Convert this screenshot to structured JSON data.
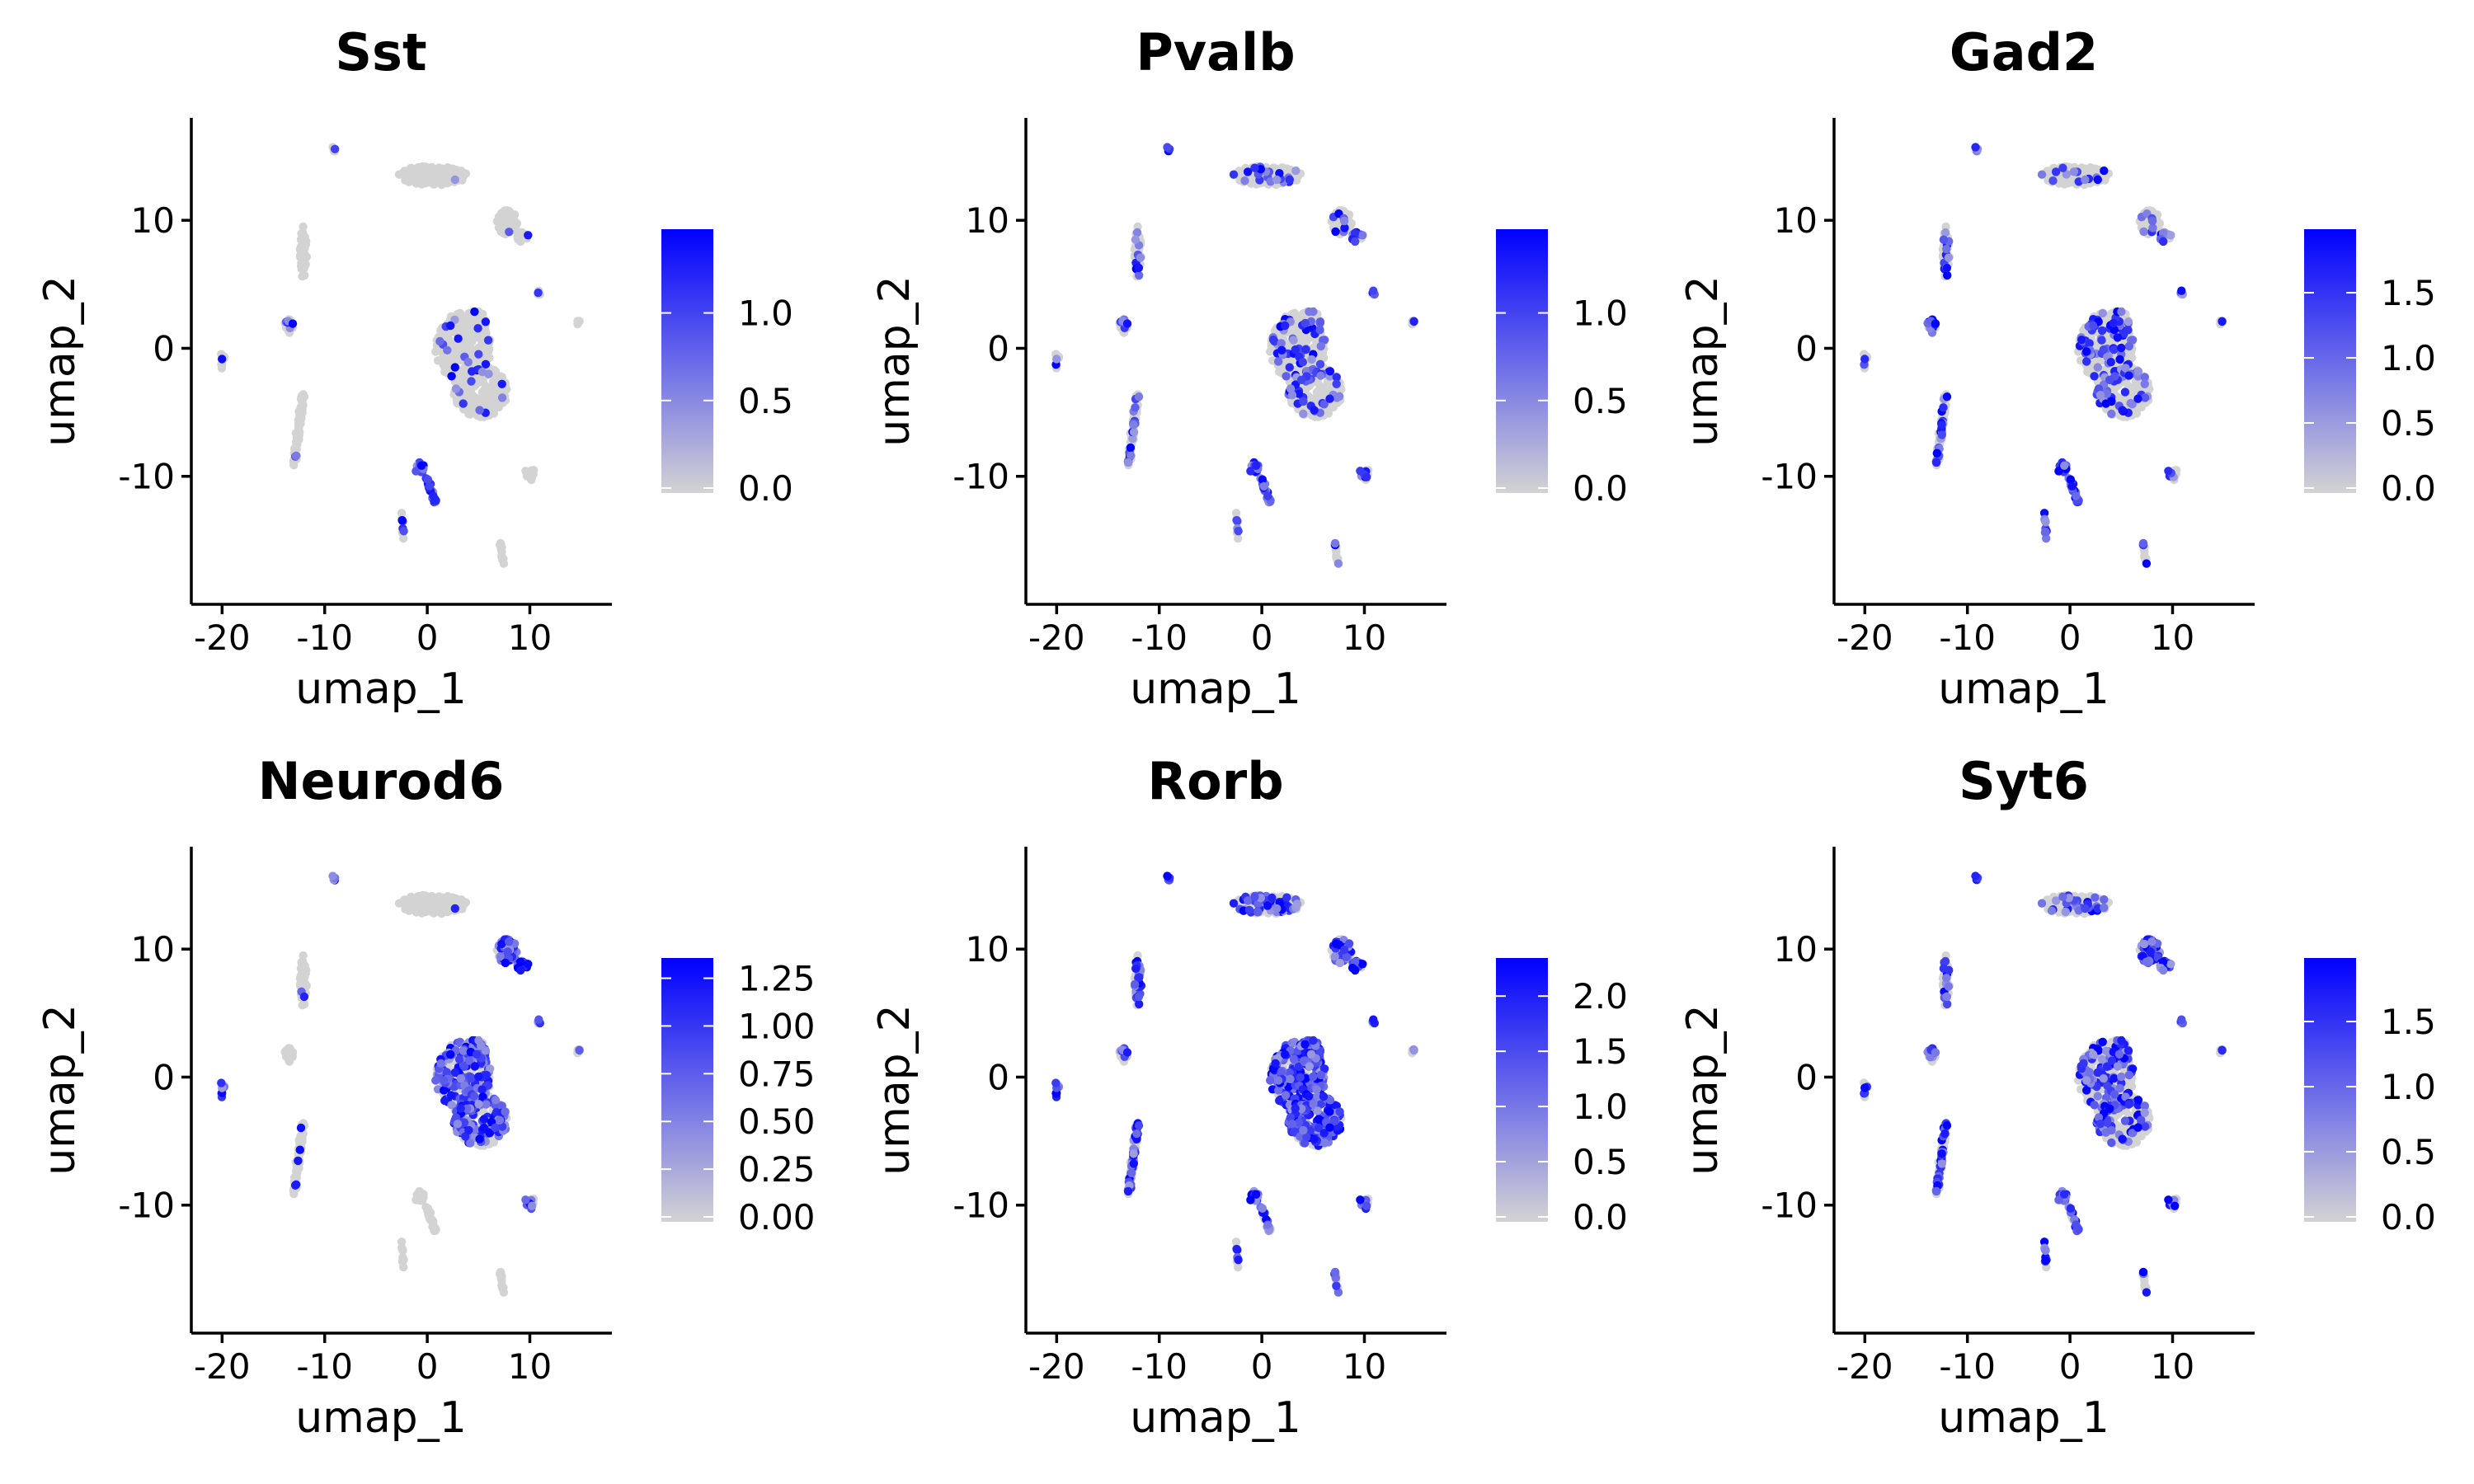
{
  "chart_data": [
    {
      "type": "scatter",
      "title": "Sst",
      "xlabel": "umap_1",
      "ylabel": "umap_2",
      "xlim": [
        -23,
        18
      ],
      "ylim": [
        -20,
        18
      ],
      "xticks": [
        -20,
        -10,
        0,
        10
      ],
      "yticks": [
        -10,
        0,
        10
      ],
      "xtick_labels": [
        "-20",
        "-10",
        "0",
        "10"
      ],
      "ytick_labels": [
        "-10",
        "0",
        "10"
      ],
      "color_low": "#d3d3d3",
      "color_high": "#0000ff",
      "legend": {
        "min": 0,
        "max": 1.45,
        "ticks": [
          0,
          0.5,
          1.0
        ],
        "tick_labels": [
          "0.0",
          "0.5",
          "1.0"
        ]
      },
      "expression": {
        "top": 0.02,
        "ant": 0.02,
        "neuron": 0.06,
        "bottom": 0.9,
        "left": 0.02,
        "minor": 0.03,
        "pockets": 0.3
      }
    },
    {
      "type": "scatter",
      "title": "Pvalb",
      "xlabel": "umap_1",
      "ylabel": "umap_2",
      "xlim": [
        -23,
        18
      ],
      "ylim": [
        -20,
        18
      ],
      "xticks": [
        -20,
        -10,
        0,
        10
      ],
      "yticks": [
        -10,
        0,
        10
      ],
      "xtick_labels": [
        "-20",
        "-10",
        "0",
        "10"
      ],
      "ytick_labels": [
        "-10",
        "0",
        "10"
      ],
      "color_low": "#d3d3d3",
      "color_high": "#0000ff",
      "legend": {
        "min": 0,
        "max": 1.45,
        "ticks": [
          0,
          0.5,
          1.0
        ],
        "tick_labels": [
          "0.0",
          "0.5",
          "1.0"
        ]
      },
      "expression": {
        "top": 0.15,
        "ant": 0.2,
        "neuron": 0.2,
        "bottom": 0.8,
        "left": 0.2,
        "minor": 0.3,
        "pockets": 0.4
      }
    },
    {
      "type": "scatter",
      "title": "Gad2",
      "xlabel": "umap_1",
      "ylabel": "umap_2",
      "xlim": [
        -23,
        18
      ],
      "ylim": [
        -20,
        18
      ],
      "xticks": [
        -20,
        -10,
        0,
        10
      ],
      "yticks": [
        -10,
        0,
        10
      ],
      "xtick_labels": [
        "-20",
        "-10",
        "0",
        "10"
      ],
      "ytick_labels": [
        "-10",
        "0",
        "10"
      ],
      "color_low": "#d3d3d3",
      "color_high": "#0000ff",
      "legend": {
        "min": 0,
        "max": 1.95,
        "ticks": [
          0,
          0.5,
          1.0,
          1.5
        ],
        "tick_labels": [
          "0.0",
          "0.5",
          "1.0",
          "1.5"
        ]
      },
      "expression": {
        "top": 0.1,
        "ant": 0.2,
        "neuron": 0.25,
        "bottom": 0.85,
        "left": 0.25,
        "minor": 0.2,
        "pockets": 0.9
      }
    },
    {
      "type": "scatter",
      "title": "Neurod6",
      "xlabel": "umap_1",
      "ylabel": "umap_2",
      "xlim": [
        -23,
        18
      ],
      "ylim": [
        -20,
        18
      ],
      "xticks": [
        -20,
        -10,
        0,
        10
      ],
      "yticks": [
        -10,
        0,
        10
      ],
      "xtick_labels": [
        "-20",
        "-10",
        "0",
        "10"
      ],
      "ytick_labels": [
        "-10",
        "0",
        "10"
      ],
      "color_low": "#d3d3d3",
      "color_high": "#0000ff",
      "legend": {
        "min": 0,
        "max": 1.33,
        "ticks": [
          0,
          0.25,
          0.5,
          0.75,
          1.0,
          1.25
        ],
        "tick_labels": [
          "0.00",
          "0.25",
          "0.50",
          "0.75",
          "1.00",
          "1.25"
        ]
      },
      "expression": {
        "top": 0.02,
        "ant": 0.75,
        "neuron": 0.6,
        "bottom": 0.05,
        "left": 0.03,
        "minor": 0.5,
        "pockets": 0.03
      }
    },
    {
      "type": "scatter",
      "title": "Rorb",
      "xlabel": "umap_1",
      "ylabel": "umap_2",
      "xlim": [
        -23,
        18
      ],
      "ylim": [
        -20,
        18
      ],
      "xticks": [
        -20,
        -10,
        0,
        10
      ],
      "yticks": [
        -10,
        0,
        10
      ],
      "xtick_labels": [
        "-20",
        "-10",
        "0",
        "10"
      ],
      "ytick_labels": [
        "-10",
        "0",
        "10"
      ],
      "color_low": "#d3d3d3",
      "color_high": "#0000ff",
      "legend": {
        "min": 0,
        "max": 2.3,
        "ticks": [
          0,
          0.5,
          1.0,
          1.5,
          2.0
        ],
        "tick_labels": [
          "0.0",
          "0.5",
          "1.0",
          "1.5",
          "2.0"
        ]
      },
      "expression": {
        "top": 0.35,
        "ant": 0.45,
        "neuron": 0.85,
        "bottom": 0.45,
        "left": 0.65,
        "minor": 0.5,
        "pockets": 0.4
      }
    },
    {
      "type": "scatter",
      "title": "Syt6",
      "xlabel": "umap_1",
      "ylabel": "umap_2",
      "xlim": [
        -23,
        18
      ],
      "ylim": [
        -20,
        18
      ],
      "xticks": [
        -20,
        -10,
        0,
        10
      ],
      "yticks": [
        -10,
        0,
        10
      ],
      "xtick_labels": [
        "-20",
        "-10",
        "0",
        "10"
      ],
      "ytick_labels": [
        "-10",
        "0",
        "10"
      ],
      "color_low": "#d3d3d3",
      "color_high": "#0000ff",
      "legend": {
        "min": 0,
        "max": 1.95,
        "ticks": [
          0,
          0.5,
          1.0,
          1.5
        ],
        "tick_labels": [
          "0.0",
          "0.5",
          "1.0",
          "1.5"
        ]
      },
      "expression": {
        "top": 0.2,
        "ant": 0.95,
        "neuron": 0.35,
        "bottom": 0.5,
        "left": 0.35,
        "minor": 0.45,
        "pockets": 0.8
      }
    }
  ]
}
